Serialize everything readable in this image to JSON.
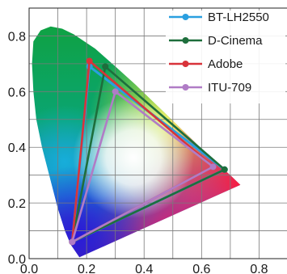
{
  "chart_data": {
    "type": "scatter",
    "chart_kind": "CIE 1931 chromaticity diagram with color gamut triangles",
    "title": "",
    "xlabel": "",
    "ylabel": "",
    "xlim": [
      0.0,
      0.9
    ],
    "ylim": [
      0.0,
      0.9
    ],
    "x_ticks": [
      "0.0",
      "0.2",
      "0.4",
      "0.6",
      "0.8"
    ],
    "y_ticks": [
      "0.0",
      "0.2",
      "0.4",
      "0.6",
      "0.8"
    ],
    "grid": true,
    "legend_position": "top-right",
    "series": [
      {
        "name": "BT-LH2550",
        "color": "#2a9fe0",
        "points": [
          [
            0.68,
            0.32
          ],
          [
            0.21,
            0.69
          ],
          [
            0.15,
            0.06
          ]
        ]
      },
      {
        "name": "D-Cinema",
        "color": "#1e6e3c",
        "points": [
          [
            0.68,
            0.32
          ],
          [
            0.265,
            0.69
          ],
          [
            0.15,
            0.06
          ]
        ]
      },
      {
        "name": "Adobe",
        "color": "#d8333a",
        "points": [
          [
            0.64,
            0.33
          ],
          [
            0.21,
            0.71
          ],
          [
            0.15,
            0.06
          ]
        ]
      },
      {
        "name": "ITU-709",
        "color": "#b07cc6",
        "points": [
          [
            0.64,
            0.33
          ],
          [
            0.3,
            0.6
          ],
          [
            0.15,
            0.06
          ]
        ]
      }
    ]
  }
}
